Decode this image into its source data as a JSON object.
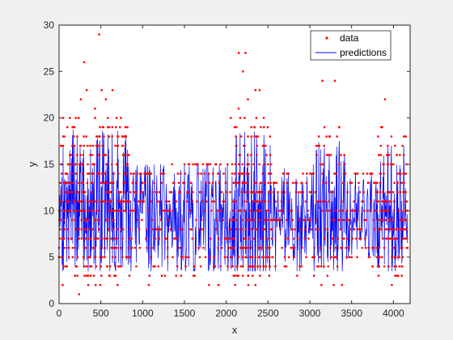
{
  "chart_data": {
    "type": "scatter",
    "xlabel": "x",
    "ylabel": "y",
    "xlim": [
      0,
      4200
    ],
    "ylim": [
      0,
      30
    ],
    "xticks": [
      0,
      500,
      1000,
      1500,
      2000,
      2500,
      3000,
      3500,
      4000
    ],
    "yticks": [
      0,
      5,
      10,
      15,
      20,
      25,
      30
    ],
    "grid": false,
    "legend_position": "top-right",
    "series": [
      {
        "name": "data",
        "style": "markers",
        "color": "#ff0000",
        "description_points": [
          [
            0,
            10
          ],
          [
            50,
            20
          ],
          [
            80,
            4
          ],
          [
            130,
            20
          ],
          [
            200,
            4
          ],
          [
            240,
            1
          ],
          [
            260,
            22
          ],
          [
            300,
            26
          ],
          [
            330,
            23
          ],
          [
            380,
            3
          ],
          [
            430,
            21
          ],
          [
            480,
            29
          ],
          [
            510,
            23
          ],
          [
            560,
            22
          ],
          [
            600,
            3
          ],
          [
            640,
            23
          ],
          [
            680,
            19
          ],
          [
            700,
            2
          ],
          [
            740,
            20
          ],
          [
            760,
            17
          ],
          [
            800,
            15
          ],
          [
            830,
            6
          ],
          [
            900,
            12
          ],
          [
            1000,
            13
          ],
          [
            1100,
            14
          ],
          [
            1200,
            12
          ],
          [
            1300,
            6
          ],
          [
            1400,
            3
          ],
          [
            1450,
            12
          ],
          [
            1500,
            13
          ],
          [
            1600,
            12
          ],
          [
            1650,
            15
          ],
          [
            1700,
            14
          ],
          [
            1800,
            13
          ],
          [
            1850,
            4
          ],
          [
            1900,
            14
          ],
          [
            2000,
            12
          ],
          [
            2100,
            19
          ],
          [
            2150,
            27
          ],
          [
            2200,
            25
          ],
          [
            2230,
            27
          ],
          [
            2260,
            22
          ],
          [
            2300,
            6
          ],
          [
            2350,
            23
          ],
          [
            2400,
            23
          ],
          [
            2450,
            19
          ],
          [
            2500,
            15
          ],
          [
            2550,
            5
          ],
          [
            2600,
            13
          ],
          [
            2700,
            12
          ],
          [
            2800,
            13
          ],
          [
            2900,
            13
          ],
          [
            3000,
            12
          ],
          [
            3050,
            3
          ],
          [
            3100,
            17
          ],
          [
            3150,
            24
          ],
          [
            3200,
            18
          ],
          [
            3250,
            16
          ],
          [
            3300,
            24
          ],
          [
            3350,
            19
          ],
          [
            3400,
            13
          ],
          [
            3500,
            13
          ],
          [
            3600,
            12
          ],
          [
            3700,
            13
          ],
          [
            3750,
            4
          ],
          [
            3800,
            13
          ],
          [
            3850,
            16
          ],
          [
            3900,
            22
          ],
          [
            3920,
            16
          ],
          [
            3950,
            16
          ],
          [
            4000,
            15
          ],
          [
            4050,
            13
          ],
          [
            4100,
            13
          ],
          [
            4150,
            14
          ]
        ]
      },
      {
        "name": "predictions",
        "style": "line",
        "color": "#0000ff"
      }
    ],
    "segments": [
      {
        "x": [
          0,
          860
        ],
        "lo": 5,
        "hi": 16,
        "spike": 19,
        "dataHi": 20,
        "sawStep": 35,
        "density": 1.0
      },
      {
        "x": [
          860,
          1300
        ],
        "lo": 5,
        "hi": 14,
        "spike": 15,
        "dataHi": 14,
        "sawStep": 40,
        "density": 0.7
      },
      {
        "x": [
          1300,
          2050
        ],
        "lo": 4,
        "hi": 14,
        "spike": 15,
        "dataHi": 15,
        "sawStep": 45,
        "density": 0.7
      },
      {
        "x": [
          2050,
          2550
        ],
        "lo": 4,
        "hi": 16,
        "spike": 19,
        "dataHi": 21,
        "sawStep": 30,
        "density": 1.0
      },
      {
        "x": [
          2550,
          3050
        ],
        "lo": 5,
        "hi": 13,
        "spike": 15,
        "dataHi": 14,
        "sawStep": 45,
        "density": 0.7
      },
      {
        "x": [
          3050,
          3450
        ],
        "lo": 5,
        "hi": 15,
        "spike": 18,
        "dataHi": 20,
        "sawStep": 35,
        "density": 0.9
      },
      {
        "x": [
          3450,
          3800
        ],
        "lo": 6,
        "hi": 13,
        "spike": 14,
        "dataHi": 14,
        "sawStep": 45,
        "density": 0.7
      },
      {
        "x": [
          3800,
          4170
        ],
        "lo": 5,
        "hi": 15,
        "spike": 17,
        "dataHi": 19,
        "sawStep": 30,
        "density": 1.0
      }
    ]
  }
}
